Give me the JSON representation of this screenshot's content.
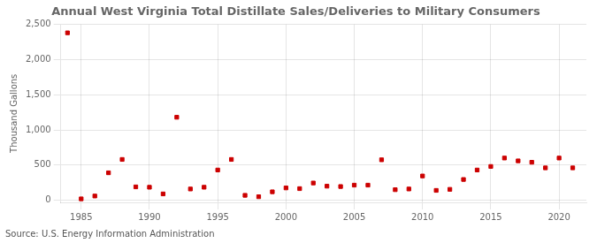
{
  "chart_data": {
    "type": "scatter",
    "title": "Annual West Virginia Total Distillate Sales/Deliveries to Military Consumers",
    "ylabel": "Thousand Gallons",
    "annotations": [
      "Source: U.S. Energy Information Administration"
    ],
    "color": "#cc0000",
    "marker": "square",
    "grid": true,
    "xlim": [
      1983.5,
      2022
    ],
    "ylim": [
      -30,
      2500
    ],
    "xticks": [
      1985,
      1990,
      1995,
      2000,
      2005,
      2010,
      2015,
      2020
    ],
    "yticks": [
      0,
      500,
      {
        "value": 1000,
        "label": "1,000"
      },
      {
        "value": 1500,
        "label": "1,500"
      },
      {
        "value": 2000,
        "label": "2,000"
      },
      {
        "value": 2500,
        "label": "2,500"
      }
    ],
    "x": [
      1984,
      1985,
      1986,
      1987,
      1988,
      1989,
      1990,
      1991,
      1992,
      1993,
      1994,
      1995,
      1996,
      1997,
      1998,
      1999,
      2000,
      2001,
      2002,
      2003,
      2004,
      2005,
      2006,
      2007,
      2008,
      2009,
      2010,
      2011,
      2012,
      2013,
      2014,
      2015,
      2016,
      2017,
      2018,
      2019,
      2020,
      2021
    ],
    "values": [
      2380,
      20,
      60,
      390,
      580,
      190,
      185,
      90,
      1180,
      160,
      185,
      430,
      580,
      70,
      50,
      120,
      175,
      165,
      245,
      200,
      195,
      215,
      215,
      575,
      150,
      160,
      345,
      140,
      155,
      295,
      430,
      480,
      600,
      560,
      540,
      460,
      600,
      460
    ]
  }
}
